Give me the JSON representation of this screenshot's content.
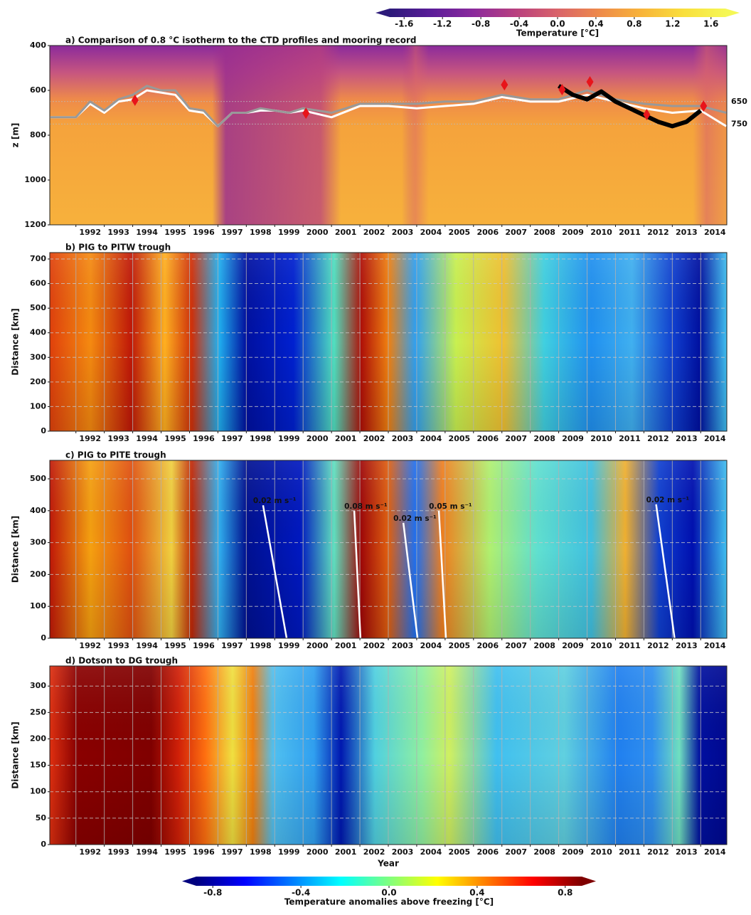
{
  "chart_data": [
    {
      "type": "colorbar",
      "label": "Temperature [°C]",
      "lim": [
        -1.75,
        1.75
      ],
      "ticks": [
        -1.6,
        -1.2,
        -0.8,
        -0.4,
        {
          "value": 0,
          "label": "0.0"
        },
        0.4,
        0.8,
        1.2,
        1.6
      ],
      "colors": [
        "#2c1a7a",
        "#5b1d99",
        "#8b2a9c",
        "#b8407f",
        "#d9636a",
        "#ee8a4a",
        "#f8b43a",
        "#f9df3c",
        "#f5f755"
      ]
    },
    {
      "type": "contour",
      "title": "a) Comparison of 0.8 °C isotherm to the CTD profiles and mooring record",
      "ylabel": "z [m]",
      "xlim": [
        1991.08,
        2014.92
      ],
      "ylim": [
        1200,
        400
      ],
      "xticks": [
        1992,
        1993,
        1994,
        1995,
        1996,
        1997,
        1998,
        1999,
        2000,
        2001,
        2002,
        2003,
        2004,
        2005,
        2006,
        2007,
        2008,
        2009,
        2010,
        2011,
        2012,
        2013,
        2014
      ],
      "yticks": [
        400,
        600,
        800,
        1000,
        1200
      ],
      "grid": false,
      "hlines": [
        650,
        750
      ],
      "lines": [
        {
          "color": "#ffffff",
          "x": [
            1991.1,
            1992,
            1992.5,
            1993,
            1993.5,
            1994,
            1994.5,
            1995,
            1995.5,
            1996,
            1996.5,
            1997,
            1997.5,
            1998,
            1998.5,
            1999,
            1999.5,
            2000,
            2001,
            2002,
            2003,
            2004,
            2005,
            2006,
            2007,
            2008,
            2009,
            2010,
            2011,
            2012,
            2013,
            2014,
            2014.9
          ],
          "values": [
            720,
            720,
            660,
            700,
            650,
            640,
            600,
            610,
            620,
            690,
            700,
            760,
            700,
            700,
            690,
            690,
            700,
            690,
            720,
            670,
            670,
            680,
            670,
            660,
            630,
            650,
            650,
            620,
            650,
            680,
            700,
            690,
            760
          ]
        },
        {
          "color": "#999999",
          "x": [
            1991.1,
            1992,
            1992.5,
            1993,
            1993.5,
            1994,
            1994.5,
            1995,
            1995.5,
            1996,
            1996.5,
            1997,
            1997.5,
            1998,
            1998.5,
            1999,
            1999.5,
            2000,
            2001,
            2002,
            2003,
            2004,
            2005,
            2006,
            2007,
            2008,
            2009,
            2010,
            2011,
            2012,
            2013,
            2014,
            2014.9
          ],
          "values": [
            720,
            720,
            650,
            690,
            640,
            620,
            580,
            600,
            600,
            680,
            690,
            760,
            700,
            700,
            680,
            690,
            700,
            680,
            700,
            660,
            660,
            660,
            650,
            650,
            620,
            640,
            640,
            600,
            640,
            660,
            670,
            670,
            700
          ]
        },
        {
          "color": "#000000",
          "x": [
            2009.0,
            2009.5,
            2010.0,
            2010.5,
            2011.0,
            2011.5,
            2012.0,
            2012.5,
            2013.0,
            2013.5,
            2014.0
          ],
          "values": [
            580,
            620,
            640,
            605,
            650,
            680,
            710,
            740,
            760,
            740,
            690
          ]
        }
      ],
      "points": {
        "color": "#e8141a",
        "x": [
          1994.08,
          2000.1,
          2007.09,
          2009.12,
          2010.1,
          2012.1,
          2014.1
        ],
        "values": [
          644,
          702,
          575,
          597,
          562,
          708,
          670
        ]
      }
    },
    {
      "type": "heatmap",
      "title": "b) PIG to PITW trough",
      "ylabel": "Distance [km]",
      "xlim": [
        1991.08,
        2014.92
      ],
      "ylim": [
        0,
        726
      ],
      "xticks": [
        1992,
        1993,
        1994,
        1995,
        1996,
        1997,
        1998,
        1999,
        2000,
        2001,
        2002,
        2003,
        2004,
        2005,
        2006,
        2007,
        2008,
        2009,
        2010,
        2011,
        2012,
        2013,
        2014
      ],
      "yticks": [
        0,
        100,
        200,
        300,
        400,
        500,
        600,
        700
      ],
      "grid": true
    },
    {
      "type": "heatmap",
      "title": "c) PIG to PITE trough",
      "ylabel": "Distance [km]",
      "xlim": [
        1991.08,
        2014.92
      ],
      "ylim": [
        0,
        558
      ],
      "xticks": [
        1992,
        1993,
        1994,
        1995,
        1996,
        1997,
        1998,
        1999,
        2000,
        2001,
        2002,
        2003,
        2004,
        2005,
        2006,
        2007,
        2008,
        2009,
        2010,
        2011,
        2012,
        2013,
        2014
      ],
      "yticks": [
        0,
        100,
        200,
        300,
        400,
        500
      ],
      "grid": true,
      "annotations": [
        {
          "text": "0.02 m s⁻¹",
          "x": [
            1998.59,
            1999.42
          ],
          "values": [
            417,
            0
          ]
        },
        {
          "text": "0.08 m s⁻¹",
          "x": [
            2001.8,
            2002.02
          ],
          "values": [
            400,
            0
          ]
        },
        {
          "text": "0.02 m s⁻¹",
          "x": [
            2003.53,
            2004.03
          ],
          "values": [
            362,
            0
          ]
        },
        {
          "text": "0.05 m s⁻¹",
          "x": [
            2004.78,
            2005.03
          ],
          "values": [
            400,
            0
          ]
        },
        {
          "text": "0.02 m s⁻¹",
          "x": [
            2012.43,
            2013.08
          ],
          "values": [
            420,
            0
          ]
        }
      ]
    },
    {
      "type": "heatmap",
      "title": "d) Dotson to DG trough",
      "ylabel": "Distance [km]",
      "xlabel": "Year",
      "xlim": [
        1991.08,
        2014.92
      ],
      "ylim": [
        0,
        338
      ],
      "xticks": [
        1992,
        1993,
        1994,
        1995,
        1996,
        1997,
        1998,
        1999,
        2000,
        2001,
        2002,
        2003,
        2004,
        2005,
        2006,
        2007,
        2008,
        2009,
        2010,
        2011,
        2012,
        2013,
        2014
      ],
      "yticks": [
        0,
        50,
        100,
        150,
        200,
        250,
        300
      ],
      "grid": true
    },
    {
      "type": "colorbar",
      "label": "Temperature anomalies above freezing [°C]",
      "lim": [
        -0.875,
        0.875
      ],
      "ticks": [
        -0.8,
        -0.4,
        {
          "value": 0,
          "label": "0.0"
        },
        0.4,
        0.8
      ],
      "colors": [
        "#00007f",
        "#0000ff",
        "#007fff",
        "#00ffff",
        "#7fff7f",
        "#ffff00",
        "#ff7f00",
        "#ff0000",
        "#7f0000"
      ]
    }
  ]
}
